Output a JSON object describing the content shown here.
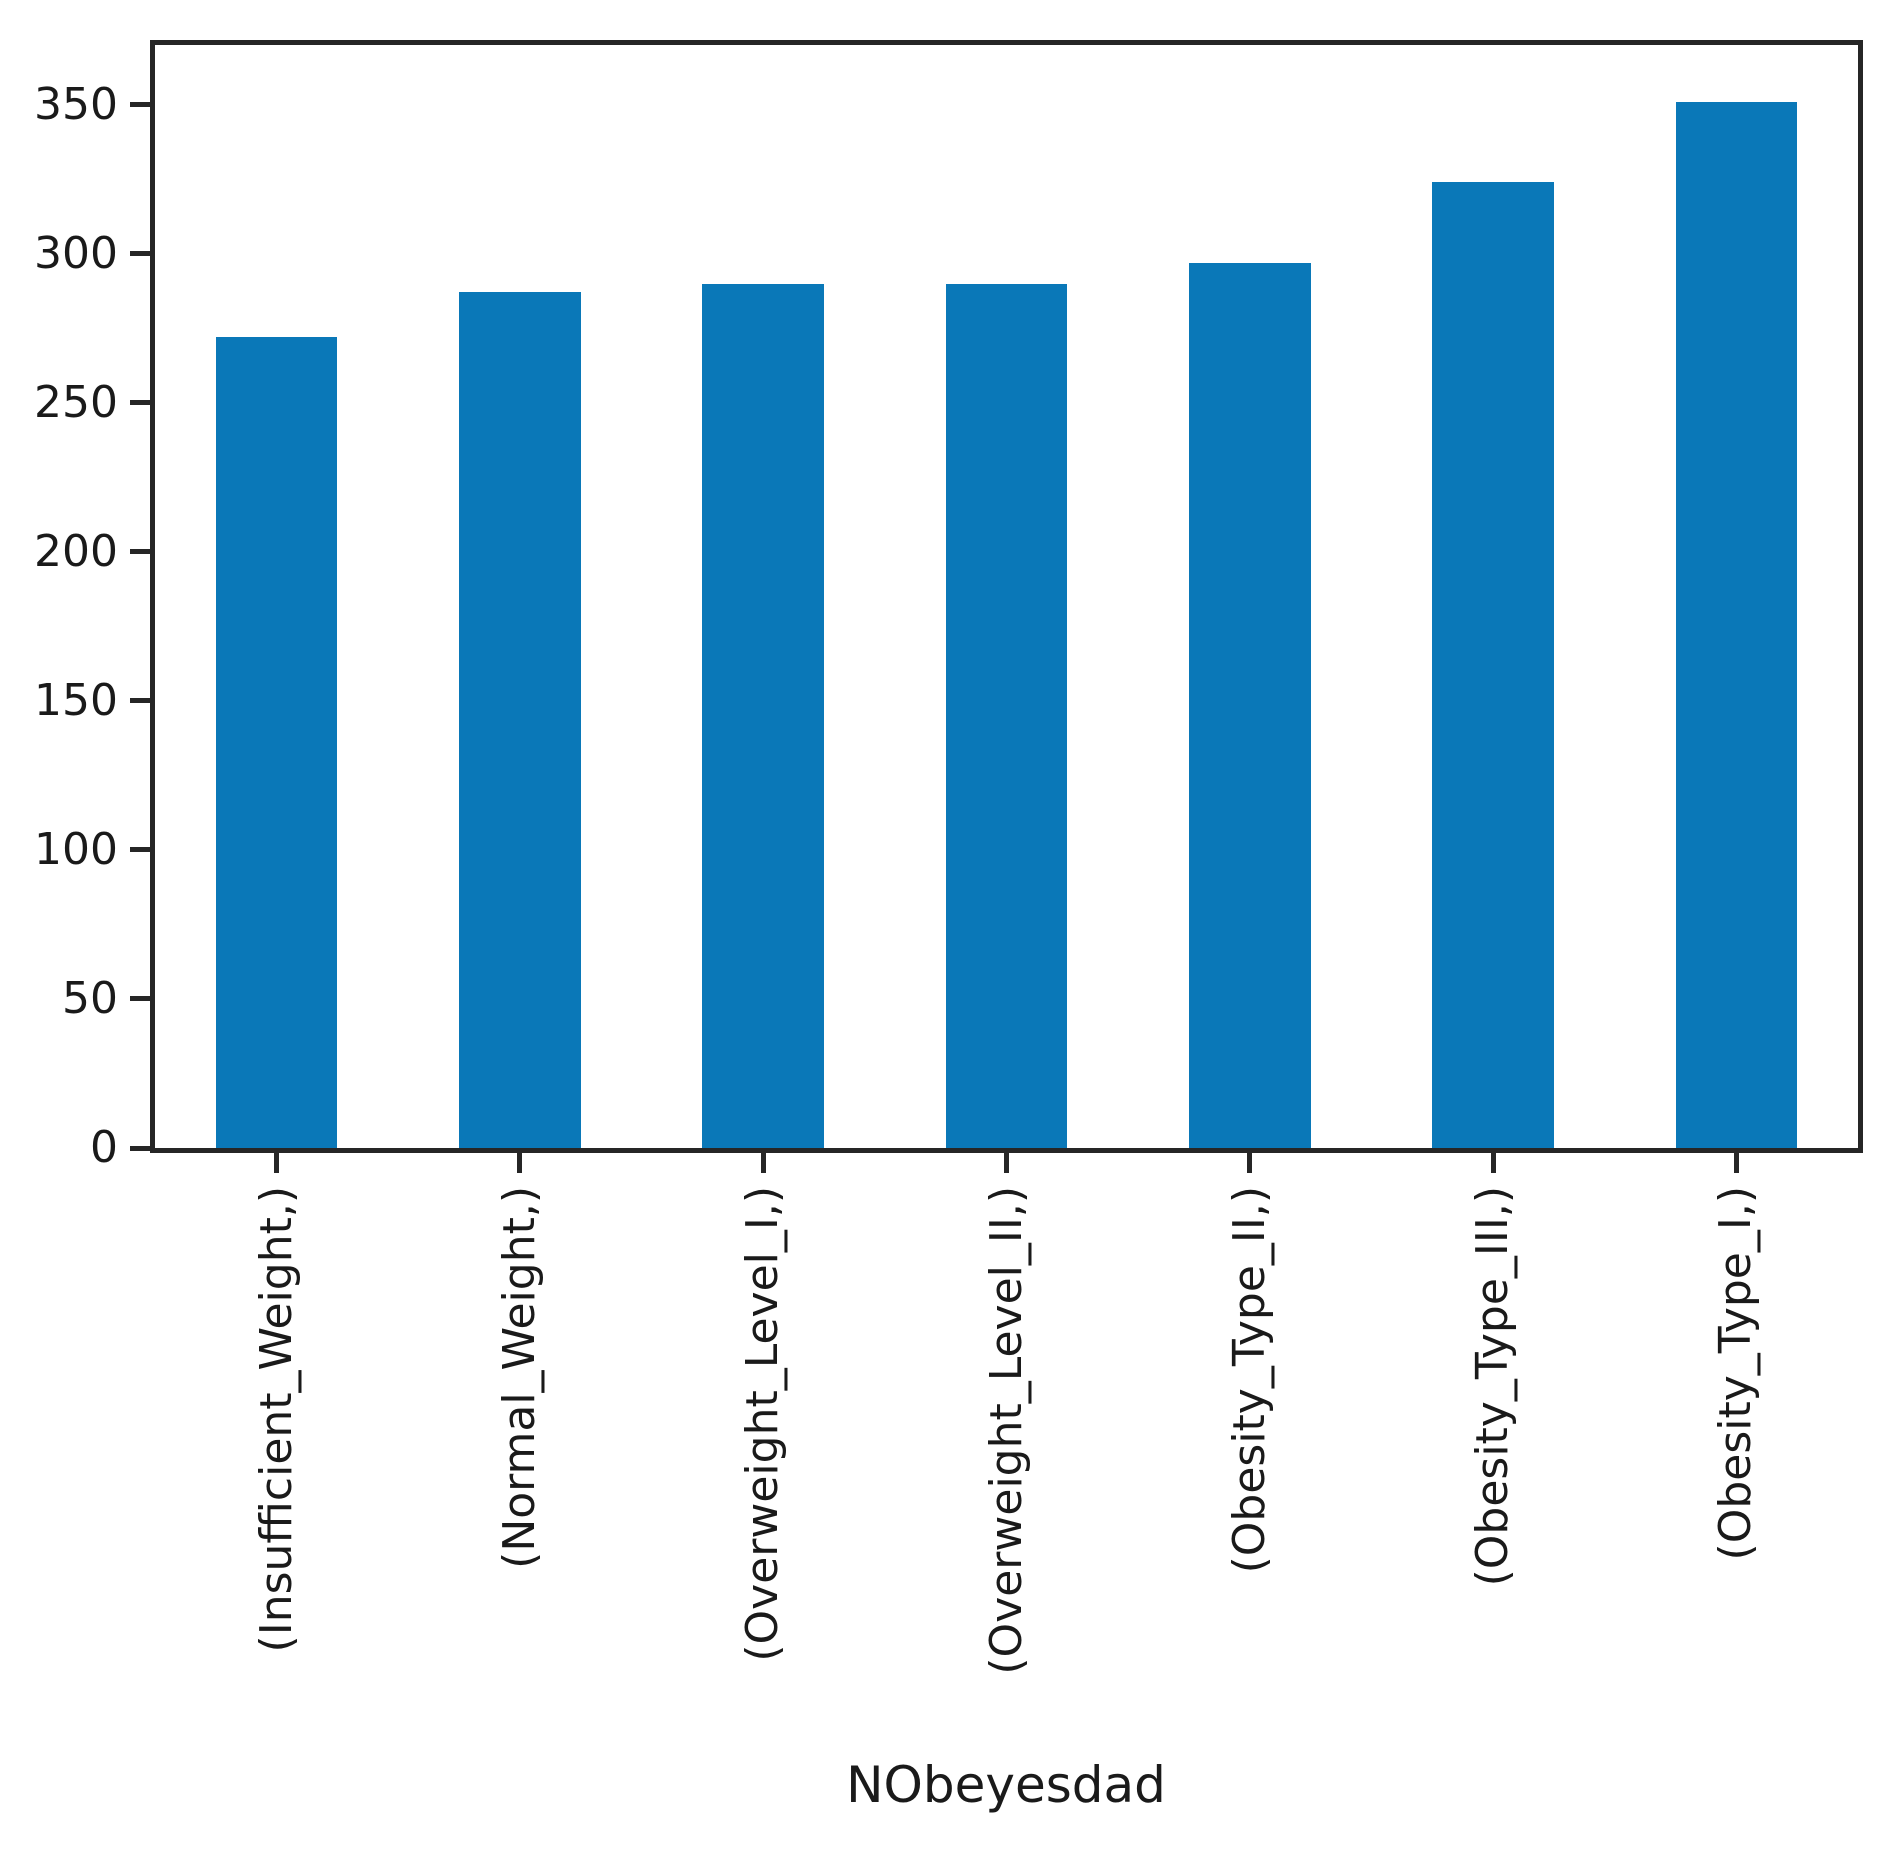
{
  "chart_data": {
    "type": "bar",
    "categories": [
      "(Insufficient_Weight,)",
      "(Normal_Weight,)",
      "(Overweight_Level_I,)",
      "(Overweight_Level_II,)",
      "(Obesity_Type_II,)",
      "(Obesity_Type_III,)",
      "(Obesity_Type_I,)"
    ],
    "values": [
      272,
      287,
      290,
      290,
      297,
      324,
      351
    ],
    "title": "",
    "xlabel": "NObeyesdad",
    "ylabel": "",
    "ylim": [
      0,
      370
    ],
    "yticks": [
      0,
      50,
      100,
      150,
      200,
      250,
      300,
      350
    ],
    "bar_color": "#0a78b8",
    "spine_color": "#262626",
    "bar_width_fraction": 0.5,
    "grid": false,
    "legend": null
  }
}
